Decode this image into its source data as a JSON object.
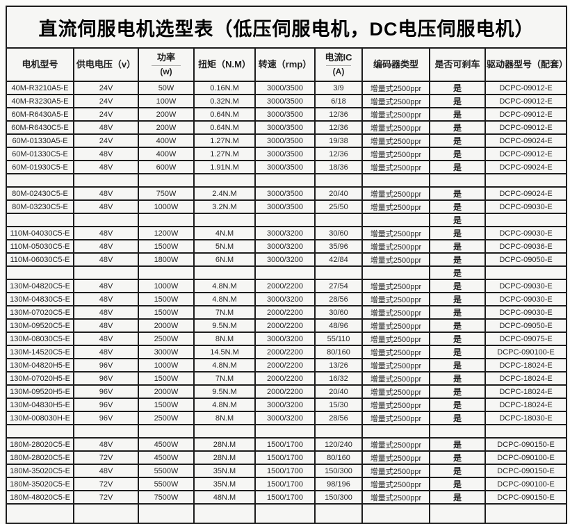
{
  "title": "直流伺服电机选型表（低压伺服电机，DC电压伺服电机）",
  "colors": {
    "border": "#1d1d1d",
    "cell_background": "#f6f6f4",
    "text": "#1f1f1f"
  },
  "table": {
    "columns": [
      {
        "label": "电机型号"
      },
      {
        "label": "供电电压（v）"
      },
      {
        "label": "功率",
        "sublabel": "(w)"
      },
      {
        "label": "扭矩（N.M）"
      },
      {
        "label": "转速（rmp）"
      },
      {
        "label": "电流IC",
        "sublabel": "(A)"
      },
      {
        "label": "编码器类型"
      },
      {
        "label": "是否可刹车"
      },
      {
        "label": "驱动器型号（配套）"
      }
    ],
    "rows": [
      [
        "40M-R3210A5-E",
        "24V",
        "50W",
        "0.16N.M",
        "3000/3500",
        "3/9",
        "增量式2500ppr",
        "是",
        "DCPC-09012-E"
      ],
      [
        "40M-R3230A5-E",
        "24V",
        "100W",
        "0.32N.M",
        "3000/3500",
        "6/18",
        "增量式2500ppr",
        "是",
        "DCPC-09012-E"
      ],
      [
        "60M-R6430A5-E",
        "24V",
        "200W",
        "0.64N.M",
        "3000/3500",
        "12/36",
        "增量式2500ppr",
        "是",
        "DCPC-09012-E"
      ],
      [
        "60M-R6430C5-E",
        "48V",
        "200W",
        "0.64N.M",
        "3000/3500",
        "12/36",
        "增量式2500ppr",
        "是",
        "DCPC-09012-E"
      ],
      [
        "60M-01330A5-E",
        "24V",
        "400W",
        "1.27N.M",
        "3000/3500",
        "19/38",
        "增量式2500ppr",
        "是",
        "DCPC-09024-E"
      ],
      [
        "60M-01330C5-E",
        "48V",
        "400W",
        "1.27N.M",
        "3000/3500",
        "12/36",
        "增量式2500ppr",
        "是",
        "DCPC-09012-E"
      ],
      [
        "60M-01930C5-E",
        "48V",
        "600W",
        "1.91N.M",
        "3000/3500",
        "18/36",
        "增量式2500ppr",
        "是",
        "DCPC-09024-E"
      ],
      [
        "",
        "",
        "",
        "",
        "",
        "",
        "",
        "",
        ""
      ],
      [
        "80M-02430C5-E",
        "48V",
        "750W",
        "2.4N.M",
        "3000/3500",
        "20/40",
        "增量式2500ppr",
        "是",
        "DCPC-09024-E"
      ],
      [
        "80M-03230C5-E",
        "48V",
        "1000W",
        "3.2N.M",
        "3000/3500",
        "25/50",
        "增量式2500ppr",
        "是",
        "DCPC-09030-E"
      ],
      [
        "",
        "",
        "",
        "",
        "",
        "",
        "",
        "是",
        ""
      ],
      [
        "110M-04030C5-E",
        "48V",
        "1200W",
        "4N.M",
        "3000/3200",
        "30/60",
        "增量式2500ppr",
        "是",
        "DCPC-09030-E"
      ],
      [
        "110M-05030C5-E",
        "48V",
        "1500W",
        "5N.M",
        "3000/3200",
        "35/96",
        "增量式2500ppr",
        "是",
        "DCPC-09036-E"
      ],
      [
        "110M-06030C5-E",
        "48V",
        "1800W",
        "6N.M",
        "3000/3200",
        "42/84",
        "增量式2500ppr",
        "是",
        "DCPC-09050-E"
      ],
      [
        "",
        "",
        "",
        "",
        "",
        "",
        "",
        "是",
        ""
      ],
      [
        "130M-04820C5-E",
        "48V",
        "1000W",
        "4.8N.M",
        "2000/2200",
        "27/54",
        "增量式2500ppr",
        "是",
        "DCPC-09030-E"
      ],
      [
        "130M-04830C5-E",
        "48V",
        "1500W",
        "4.8N.M",
        "3000/3200",
        "28/56",
        "增量式2500ppr",
        "是",
        "DCPC-09030-E"
      ],
      [
        "130M-07020C5-E",
        "48V",
        "1500W",
        "7N.M",
        "2000/2200",
        "30/60",
        "增量式2500ppr",
        "是",
        "DCPC-09030-E"
      ],
      [
        "130M-09520C5-E",
        "48V",
        "2000W",
        "9.5N.M",
        "2000/2200",
        "48/96",
        "增量式2500ppr",
        "是",
        "DCPC-09050-E"
      ],
      [
        "130M-08030C5-E",
        "48V",
        "2500W",
        "8N.M",
        "3000/3200",
        "55/110",
        "增量式2500ppr",
        "是",
        "DCPC-09075-E"
      ],
      [
        "130M-14520C5-E",
        "48V",
        "3000W",
        "14.5N.M",
        "2000/2200",
        "80/160",
        "增量式2500ppr",
        "是",
        "DCPC-090100-E"
      ],
      [
        "130M-04820H5-E",
        "96V",
        "1000W",
        "4.8N.M",
        "2000/2200",
        "13/26",
        "增量式2500ppr",
        "是",
        "DCPC-18024-E"
      ],
      [
        "130M-07020H5-E",
        "96V",
        "1500W",
        "7N.M",
        "2000/2200",
        "16/32",
        "增量式2500ppr",
        "是",
        "DCPC-18024-E"
      ],
      [
        "130M-09520H5-E",
        "96V",
        "2000W",
        "9.5N.M",
        "2000/2200",
        "20/40",
        "增量式2500ppr",
        "是",
        "DCPC-18024-E"
      ],
      [
        "130M-04830H5-E",
        "96V",
        "1500W",
        "4.8N.M",
        "3000/3200",
        "15/30",
        "增量式2500ppr",
        "是",
        "DCPC-18024-E"
      ],
      [
        "130M-008030H-E",
        "96V",
        "2500W",
        "8N.M",
        "3000/3200",
        "28/56",
        "增量式2500ppr",
        "是",
        "DCPC-18030-E"
      ],
      [
        "",
        "",
        "",
        "",
        "",
        "",
        "",
        "",
        ""
      ],
      [
        "180M-28020C5-E",
        "48V",
        "4500W",
        "28N.M",
        "1500/1700",
        "120/240",
        "增量式2500ppr",
        "是",
        "DCPC-090150-E"
      ],
      [
        "180M-28020C5-E",
        "72V",
        "4500W",
        "28N.M",
        "1500/1700",
        "80/160",
        "增量式2500ppr",
        "是",
        "DCPC-090100-E"
      ],
      [
        "180M-35020C5-E",
        "48V",
        "5500W",
        "35N.M",
        "1500/1700",
        "150/300",
        "增量式2500ppr",
        "是",
        "DCPC-090150-E"
      ],
      [
        "180M-35020C5-E",
        "72V",
        "5500W",
        "35N.M",
        "1500/1700",
        "98/196",
        "增量式2500ppr",
        "是",
        "DCPC-090100-E"
      ],
      [
        "180M-48020C5-E",
        "72V",
        "7500W",
        "48N.M",
        "1500/1700",
        "150/300",
        "增量式2500ppr",
        "是",
        "DCPC-090150-E"
      ],
      [
        "",
        "",
        "",
        "",
        "",
        "",
        "",
        "",
        ""
      ]
    ]
  }
}
